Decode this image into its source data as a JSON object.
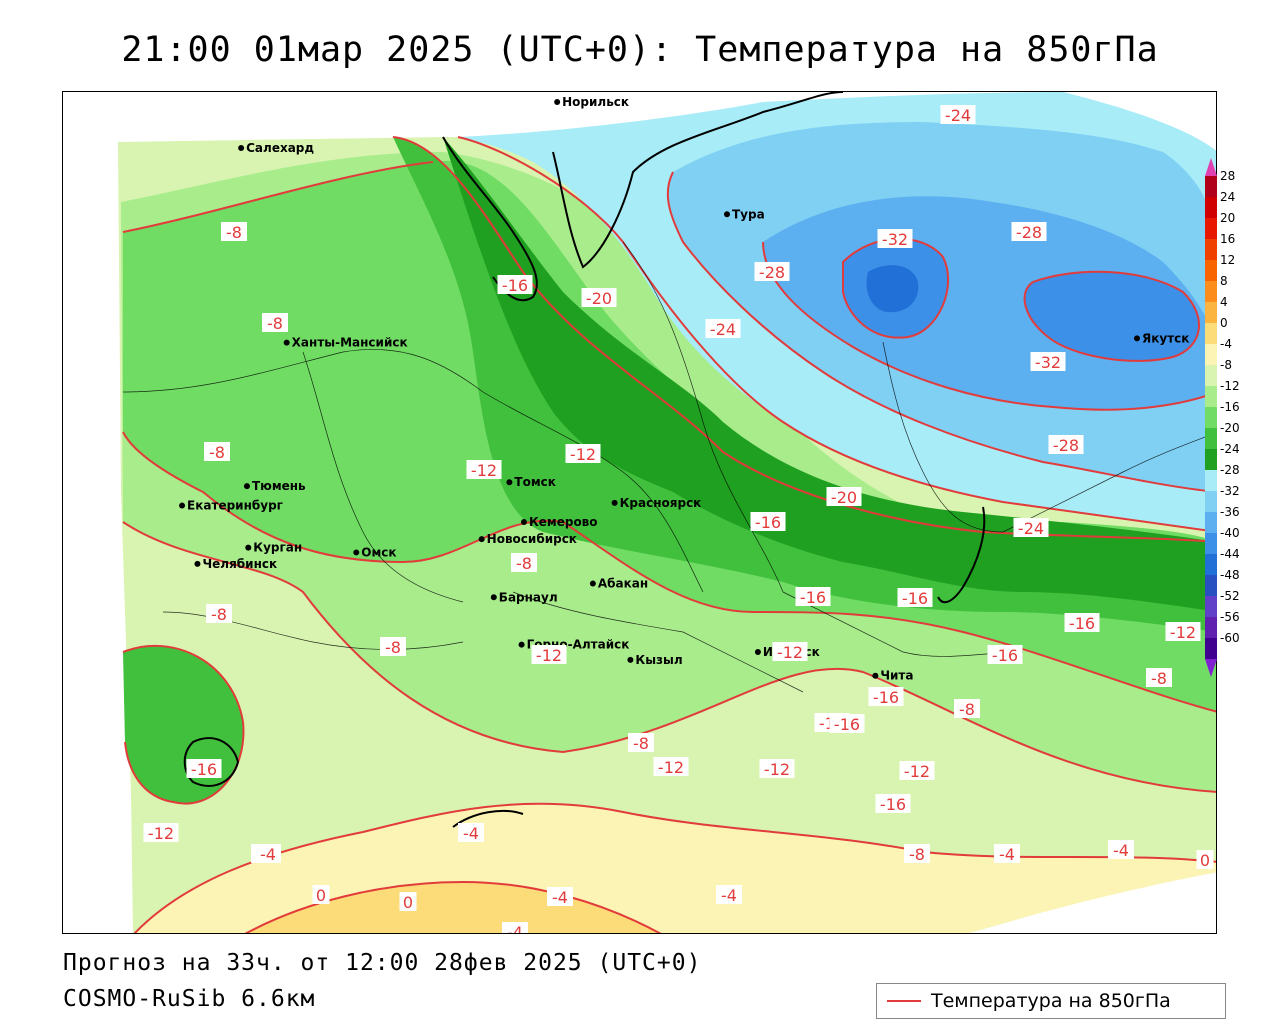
{
  "title": "21:00 01мар 2025 (UTC+0): Температура на 850гПа",
  "footer": {
    "forecast": "Прогноз на 33ч. от 12:00 28фев 2025 (UTC+0)",
    "model": "COSMO-RuSib 6.6км"
  },
  "legend": {
    "label": "Температура на 850гПа",
    "line_color": "#e23b3b"
  },
  "colorbar": {
    "labels": [
      "28",
      "24",
      "20",
      "16",
      "12",
      "8",
      "4",
      "0",
      "-4",
      "-8",
      "-12",
      "-16",
      "-20",
      "-24",
      "-28",
      "-32",
      "-36",
      "-40",
      "-44",
      "-48",
      "-52",
      "-56",
      "-60"
    ],
    "colors": [
      "#b0001a",
      "#d00000",
      "#e81800",
      "#f04000",
      "#f86400",
      "#fc8c1c",
      "#fcb440",
      "#fcdc78",
      "#fcf4b4",
      "#d8f4b0",
      "#a8ec8c",
      "#70dc64",
      "#40c03c",
      "#20a020",
      "#a8ecf8",
      "#80d0f4",
      "#5cb0f0",
      "#3c90e8",
      "#2070d8",
      "#2850c0",
      "#6040c8",
      "#6020b0",
      "#400090"
    ],
    "top_arrow_color": "#e040b0",
    "bottom_arrow_color": "#8020d0"
  },
  "cities": [
    {
      "name": "Норильск",
      "lon": 88.2,
      "lat": 69.35
    },
    {
      "name": "Якутск",
      "lon": 129.7,
      "lat": 62.0
    },
    {
      "name": "Салехард",
      "lon": 66.6,
      "lat": 66.5
    },
    {
      "name": "Тура",
      "lon": 100.2,
      "lat": 64.3
    },
    {
      "name": "Ханты-Мансийск",
      "lon": 69.0,
      "lat": 61.0
    },
    {
      "name": "Екатеринбург",
      "lon": 60.6,
      "lat": 56.8
    },
    {
      "name": "Тюмень",
      "lon": 65.5,
      "lat": 57.15
    },
    {
      "name": "Челябинск",
      "lon": 61.4,
      "lat": 55.15
    },
    {
      "name": "Курган",
      "lon": 65.3,
      "lat": 55.45
    },
    {
      "name": "Омск",
      "lon": 73.4,
      "lat": 55.0
    },
    {
      "name": "Томск",
      "lon": 85.0,
      "lat": 56.5
    },
    {
      "name": "Новосибирск",
      "lon": 82.9,
      "lat": 55.0
    },
    {
      "name": "Кемерово",
      "lon": 86.1,
      "lat": 55.35
    },
    {
      "name": "Красноярск",
      "lon": 92.9,
      "lat": 56.0
    },
    {
      "name": "Абакан",
      "lon": 91.4,
      "lat": 53.7
    },
    {
      "name": "Барнаул",
      "lon": 83.8,
      "lat": 53.35
    },
    {
      "name": "Горно-Алтайск",
      "lon": 85.95,
      "lat": 51.95
    },
    {
      "name": "Кызыл",
      "lon": 94.45,
      "lat": 51.7
    },
    {
      "name": "Иркутск",
      "lon": 104.3,
      "lat": 52.3
    },
    {
      "name": "Чита",
      "lon": 113.5,
      "lat": 52.0
    }
  ],
  "isotherm_labels": [
    {
      "text": "-24"
    },
    {
      "text": "-8"
    },
    {
      "text": "-32"
    },
    {
      "text": "-28"
    },
    {
      "text": "-16"
    },
    {
      "text": "-20"
    },
    {
      "text": "-28"
    },
    {
      "text": "-8"
    },
    {
      "text": "-24"
    },
    {
      "text": "-32"
    },
    {
      "text": "-12"
    },
    {
      "text": "-12"
    },
    {
      "text": "-8"
    },
    {
      "text": "-28"
    },
    {
      "text": "-20"
    },
    {
      "text": "-16"
    },
    {
      "text": "-24"
    },
    {
      "text": "-8"
    },
    {
      "text": "-16"
    },
    {
      "text": "-8"
    },
    {
      "text": "-16"
    },
    {
      "text": "-12"
    },
    {
      "text": "-12"
    },
    {
      "text": "-16"
    },
    {
      "text": "-12"
    },
    {
      "text": "-8"
    },
    {
      "text": "-8"
    },
    {
      "text": "-16"
    },
    {
      "text": "-8"
    },
    {
      "text": "-16"
    },
    {
      "text": "-8"
    },
    {
      "text": "-12"
    },
    {
      "text": "-12"
    },
    {
      "text": "-12"
    },
    {
      "text": "-16"
    },
    {
      "text": "-16"
    },
    {
      "text": "-12"
    },
    {
      "text": "-8"
    },
    {
      "text": "-8"
    },
    {
      "text": "-4"
    },
    {
      "text": "-4"
    },
    {
      "text": "-4"
    },
    {
      "text": "-4"
    },
    {
      "text": "0"
    },
    {
      "text": "0"
    },
    {
      "text": "-4"
    },
    {
      "text": "-4"
    },
    {
      "text": "-4"
    },
    {
      "text": "0"
    },
    {
      "text": "-16"
    },
    {
      "text": "-16"
    }
  ]
}
